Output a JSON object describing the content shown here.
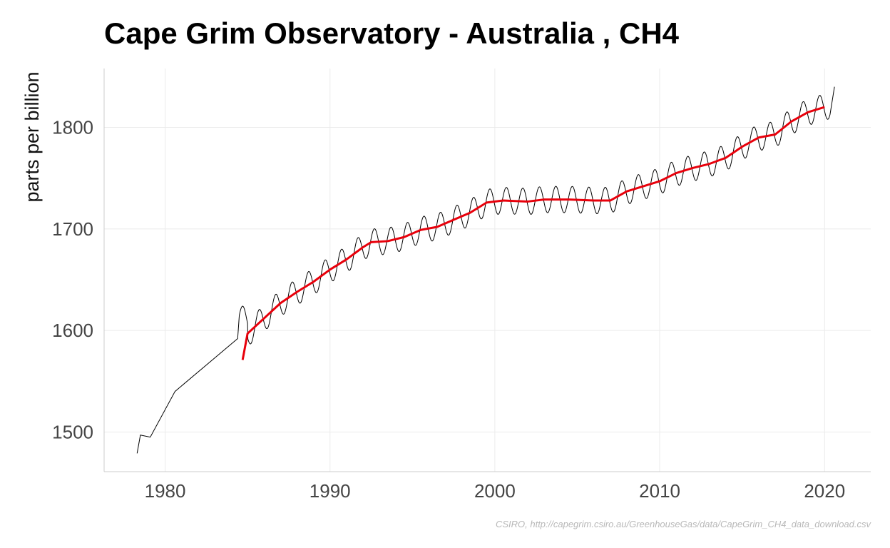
{
  "chart_data": {
    "type": "line",
    "title": "Cape Grim Observatory - Australia , CH4",
    "xlabel": "",
    "ylabel": "parts per billion",
    "caption": "CSIRO, http://capegrim.csiro.au/GreenhouseGas/data/CapeGrim_CH4_data_download.csv",
    "xlim": [
      1976.3,
      2022.8
    ],
    "ylim": [
      1461,
      1858
    ],
    "x_ticks": [
      1980,
      1990,
      2000,
      2010,
      2020
    ],
    "y_ticks": [
      1500,
      1600,
      1700,
      1800
    ],
    "x_tick_labels": [
      "1980",
      "1990",
      "2000",
      "2010",
      "2020"
    ],
    "y_tick_labels": [
      "1500",
      "1600",
      "1700",
      "1800"
    ],
    "grid": true,
    "legend": "none",
    "colors": {
      "monthly": "#000000",
      "trend": "#e8000b",
      "grid": "#ebebeb",
      "axis": "#cccccc"
    },
    "series": [
      {
        "role": "monthly",
        "early_points": [
          {
            "x": 1978.3,
            "y": 1479
          },
          {
            "x": 1978.5,
            "y": 1497
          },
          {
            "x": 1979.1,
            "y": 1495
          },
          {
            "x": 1980.6,
            "y": 1540
          },
          {
            "x": 1984.4,
            "y": 1592
          }
        ],
        "seasonal_from": 1984.5,
        "seasonal_to": 2020.6,
        "seasonal_amplitude": 13,
        "seasonal_peak_month_fraction": 0.7,
        "end_point": {
          "x": 2020.6,
          "y": 1840
        }
      },
      {
        "role": "trend",
        "points": [
          {
            "x": 1984.7,
            "y": 1571
          },
          {
            "x": 1985.0,
            "y": 1597
          },
          {
            "x": 1986.0,
            "y": 1612
          },
          {
            "x": 1987.0,
            "y": 1627
          },
          {
            "x": 1988.0,
            "y": 1638
          },
          {
            "x": 1989.0,
            "y": 1648
          },
          {
            "x": 1990.0,
            "y": 1660
          },
          {
            "x": 1991.0,
            "y": 1670
          },
          {
            "x": 1992.0,
            "y": 1682
          },
          {
            "x": 1992.5,
            "y": 1687
          },
          {
            "x": 1993.5,
            "y": 1688
          },
          {
            "x": 1994.5,
            "y": 1692
          },
          {
            "x": 1995.5,
            "y": 1699
          },
          {
            "x": 1996.5,
            "y": 1702
          },
          {
            "x": 1997.5,
            "y": 1709
          },
          {
            "x": 1998.5,
            "y": 1716
          },
          {
            "x": 1999.5,
            "y": 1726
          },
          {
            "x": 2000.5,
            "y": 1728
          },
          {
            "x": 2002.0,
            "y": 1727
          },
          {
            "x": 2003.0,
            "y": 1729
          },
          {
            "x": 2004.5,
            "y": 1729
          },
          {
            "x": 2006.0,
            "y": 1728
          },
          {
            "x": 2007.0,
            "y": 1728
          },
          {
            "x": 2008.0,
            "y": 1737
          },
          {
            "x": 2009.0,
            "y": 1742
          },
          {
            "x": 2010.0,
            "y": 1747
          },
          {
            "x": 2011.0,
            "y": 1755
          },
          {
            "x": 2012.0,
            "y": 1760
          },
          {
            "x": 2013.0,
            "y": 1764
          },
          {
            "x": 2014.0,
            "y": 1770
          },
          {
            "x": 2015.0,
            "y": 1781
          },
          {
            "x": 2016.0,
            "y": 1790
          },
          {
            "x": 2017.0,
            "y": 1793
          },
          {
            "x": 2018.0,
            "y": 1806
          },
          {
            "x": 2019.0,
            "y": 1815
          },
          {
            "x": 2020.0,
            "y": 1820
          }
        ]
      }
    ]
  }
}
